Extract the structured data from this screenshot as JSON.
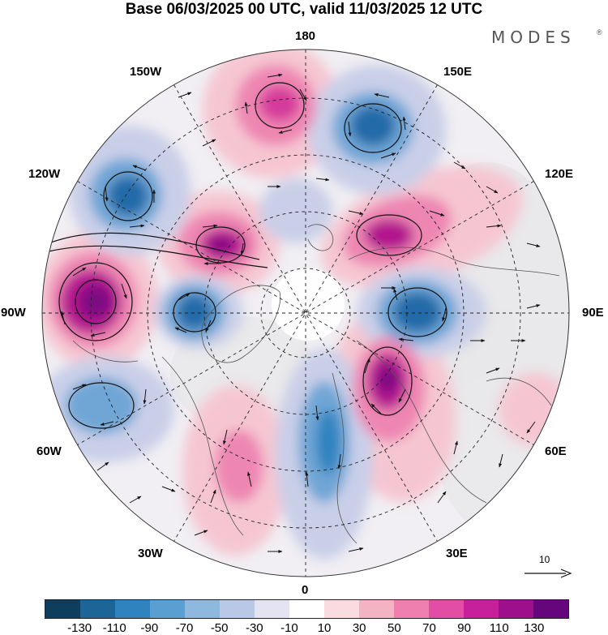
{
  "title": "Base 06/03/2025 00 UTC, valid 11/03/2025 12 UTC",
  "brand": "MODES",
  "brand_mark": "®",
  "longitude_labels": {
    "lon_180": "180",
    "lon_150w": "150W",
    "lon_150e": "150E",
    "lon_120w": "120W",
    "lon_120e": "120E",
    "lon_90w": "90W",
    "lon_90e": "90E",
    "lon_60w": "60W",
    "lon_60e": "60E",
    "lon_30w": "30W",
    "lon_30e": "30E",
    "lon_0": "0"
  },
  "vector_scale_label": "10",
  "colorbar": {
    "colors": [
      "#0f3d5e",
      "#1c6596",
      "#2f83bf",
      "#5a9fd1",
      "#8fb8df",
      "#b9c8e6",
      "#e3e3f1",
      "#ffffff",
      "#f9dbe0",
      "#f3b3c3",
      "#ef7fae",
      "#e14ea3",
      "#c7209a",
      "#9e0f8c",
      "#65067d"
    ],
    "tick_labels": [
      "-130",
      "-110",
      "-90",
      "-70",
      "-50",
      "-30",
      "-10",
      "10",
      "30",
      "50",
      "70",
      "90",
      "110",
      "130"
    ]
  },
  "map_colors": {
    "land": "#e6e6e6",
    "neg_weak": "#c9cfe8",
    "neg_mid": "#6fa6d6",
    "neg_strong": "#246ba8",
    "pos_weak": "#f5c6d2",
    "pos_mid": "#ee86b2",
    "pos_strong": "#b3148f",
    "pos_max": "#7a0a82"
  }
}
